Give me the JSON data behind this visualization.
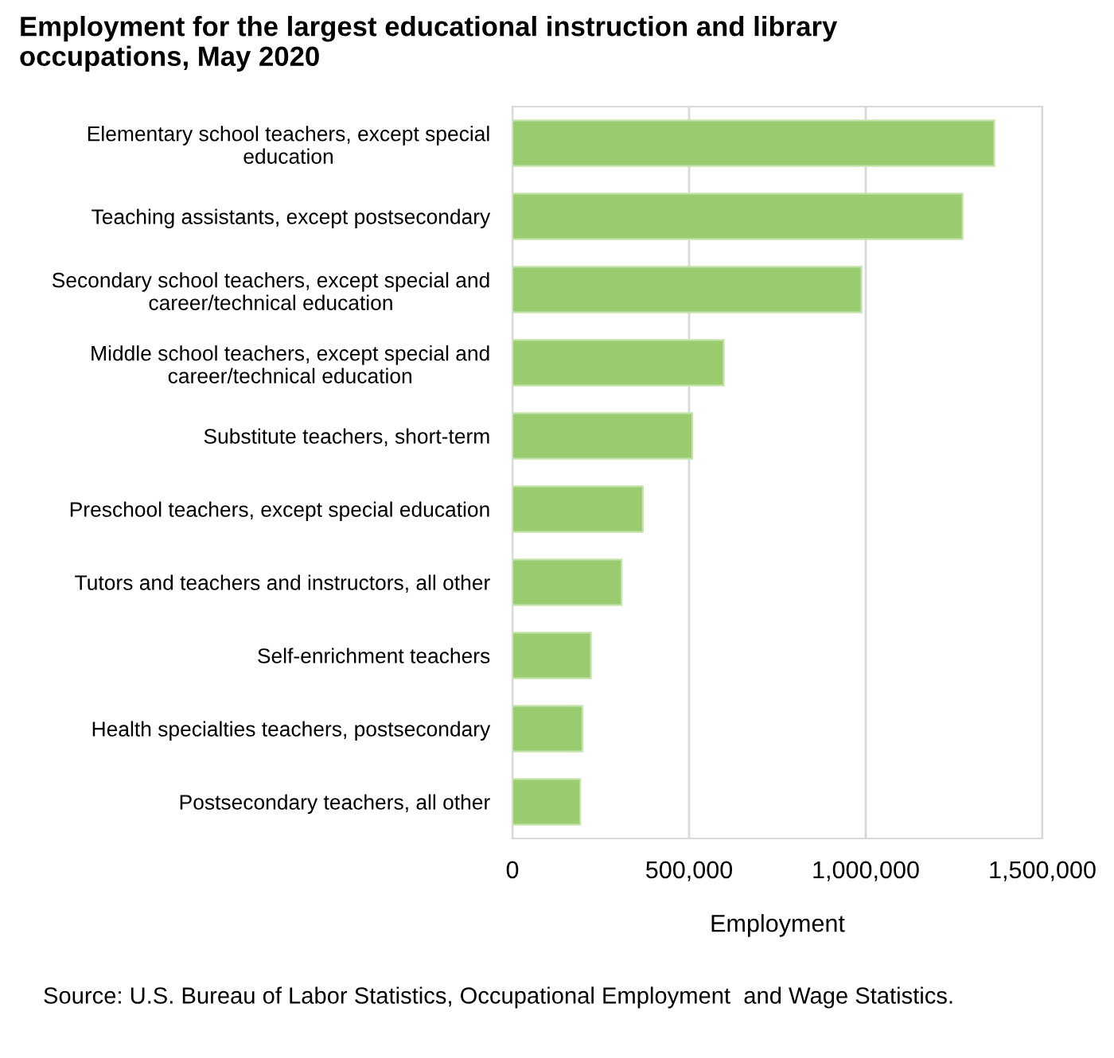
{
  "chart_data": {
    "type": "bar",
    "orientation": "horizontal",
    "title": "Employment for the largest educational instruction and library occupations, May 2020",
    "xlabel": "Employment",
    "categories": [
      "Elementary school teachers, except special education",
      "Teaching assistants, except postsecondary",
      "Secondary school teachers, except special and career/technical education",
      "Middle school teachers, except special and career/technical education",
      "Substitute teachers, short-term",
      "Preschool teachers, except special education",
      "Tutors and teachers and instructors, all other",
      "Self-enrichment teachers",
      "Health specialties teachers, postsecondary",
      "Postsecondary teachers, all other"
    ],
    "values": [
      1364000,
      1274000,
      988000,
      598000,
      509000,
      369000,
      309000,
      222000,
      198000,
      192000
    ],
    "color": "#9bcb6f",
    "xlim": [
      0,
      1500000
    ],
    "xticks": [
      0,
      {
        "value": 500000,
        "label": "500,000"
      },
      {
        "value": 1000000,
        "label": "1,000,000"
      },
      {
        "value": 1500000,
        "label": "1,500,000"
      }
    ],
    "grid": "x",
    "annotations": [
      "Source: U.S. Bureau of Labor Statistics, Occupational Employment  and Wage Statistics."
    ]
  }
}
